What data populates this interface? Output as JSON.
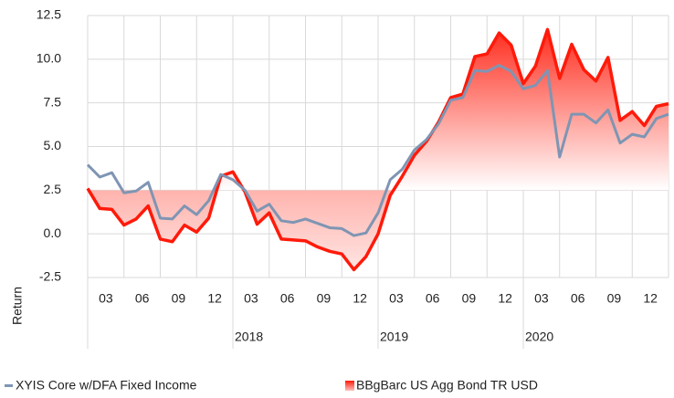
{
  "chart_data": {
    "type": "line",
    "y_label": "Return",
    "quarter_labels": [
      "03",
      "06",
      "09",
      "12",
      "03",
      "06",
      "09",
      "12",
      "03",
      "06",
      "09",
      "12",
      "03",
      "06",
      "09",
      "12"
    ],
    "year_labels": [
      null,
      "2018",
      "2019",
      "2020"
    ],
    "ylim": [
      -2.5,
      12.5
    ],
    "yticks": [
      {
        "value": -2.5,
        "label": "-2.5"
      },
      {
        "value": 0,
        "label": "0.0"
      },
      {
        "value": 2.5,
        "label": "2.5"
      },
      {
        "value": 5,
        "label": "5.0"
      },
      {
        "value": 7.5,
        "label": "7.5"
      },
      {
        "value": 10,
        "label": "10.0"
      },
      {
        "value": 12.5,
        "label": "12.5"
      }
    ],
    "grid": true,
    "area_baseline": 2.5,
    "series": [
      {
        "name": "XYIS Core w/DFA Fixed Income",
        "color": "#7f95b3",
        "style": "line",
        "values": [
          3.95,
          3.25,
          3.5,
          2.35,
          2.45,
          2.95,
          0.9,
          0.85,
          1.6,
          1.1,
          1.9,
          3.4,
          3.1,
          2.5,
          1.3,
          1.7,
          0.75,
          0.65,
          0.85,
          0.6,
          0.35,
          0.3,
          -0.1,
          0.05,
          1.2,
          3.1,
          3.7,
          4.8,
          5.4,
          6.3,
          7.65,
          7.8,
          9.35,
          9.3,
          9.65,
          9.3,
          8.3,
          8.5,
          9.35,
          4.4,
          6.85,
          6.85,
          6.35,
          7.1,
          5.2,
          5.7,
          5.55,
          6.6,
          6.85
        ]
      },
      {
        "name": "BBgBarc US Agg Bond TR USD",
        "color": "#ff1a0a",
        "style": "area",
        "values": [
          2.6,
          1.45,
          1.4,
          0.5,
          0.85,
          1.6,
          -0.3,
          -0.45,
          0.5,
          0.1,
          0.9,
          3.3,
          3.55,
          2.4,
          0.55,
          1.2,
          -0.3,
          -0.35,
          -0.4,
          -0.75,
          -1.0,
          -1.15,
          -2.05,
          -1.3,
          0.0,
          2.2,
          3.3,
          4.5,
          5.3,
          6.4,
          7.8,
          8.0,
          10.15,
          10.3,
          11.5,
          10.8,
          8.6,
          9.6,
          11.7,
          8.9,
          10.85,
          9.4,
          8.75,
          10.1,
          6.5,
          7.0,
          6.2,
          7.3,
          7.45
        ]
      }
    ]
  }
}
